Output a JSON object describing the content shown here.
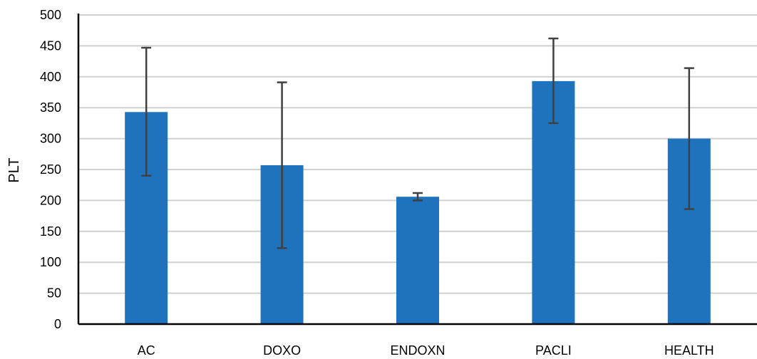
{
  "chart_data": {
    "type": "bar",
    "title": "",
    "xlabel": "",
    "ylabel": "PLT",
    "categories": [
      "AC",
      "DOXO",
      "ENDOXN",
      "PACLI",
      "HEALTH"
    ],
    "values": [
      343,
      257,
      206,
      393,
      300
    ],
    "error_low": [
      240,
      123,
      200,
      325,
      186
    ],
    "error_high": [
      447,
      391,
      212,
      462,
      414
    ],
    "ylim": [
      0,
      500
    ],
    "yticks": [
      0,
      50,
      100,
      150,
      200,
      250,
      300,
      350,
      400,
      450,
      500
    ],
    "grid": true,
    "legend": "none",
    "colors": {
      "bar": "#1f73bd",
      "error_bar": "#404040",
      "grid": "#d0d0d0",
      "axis": "#000000"
    }
  }
}
